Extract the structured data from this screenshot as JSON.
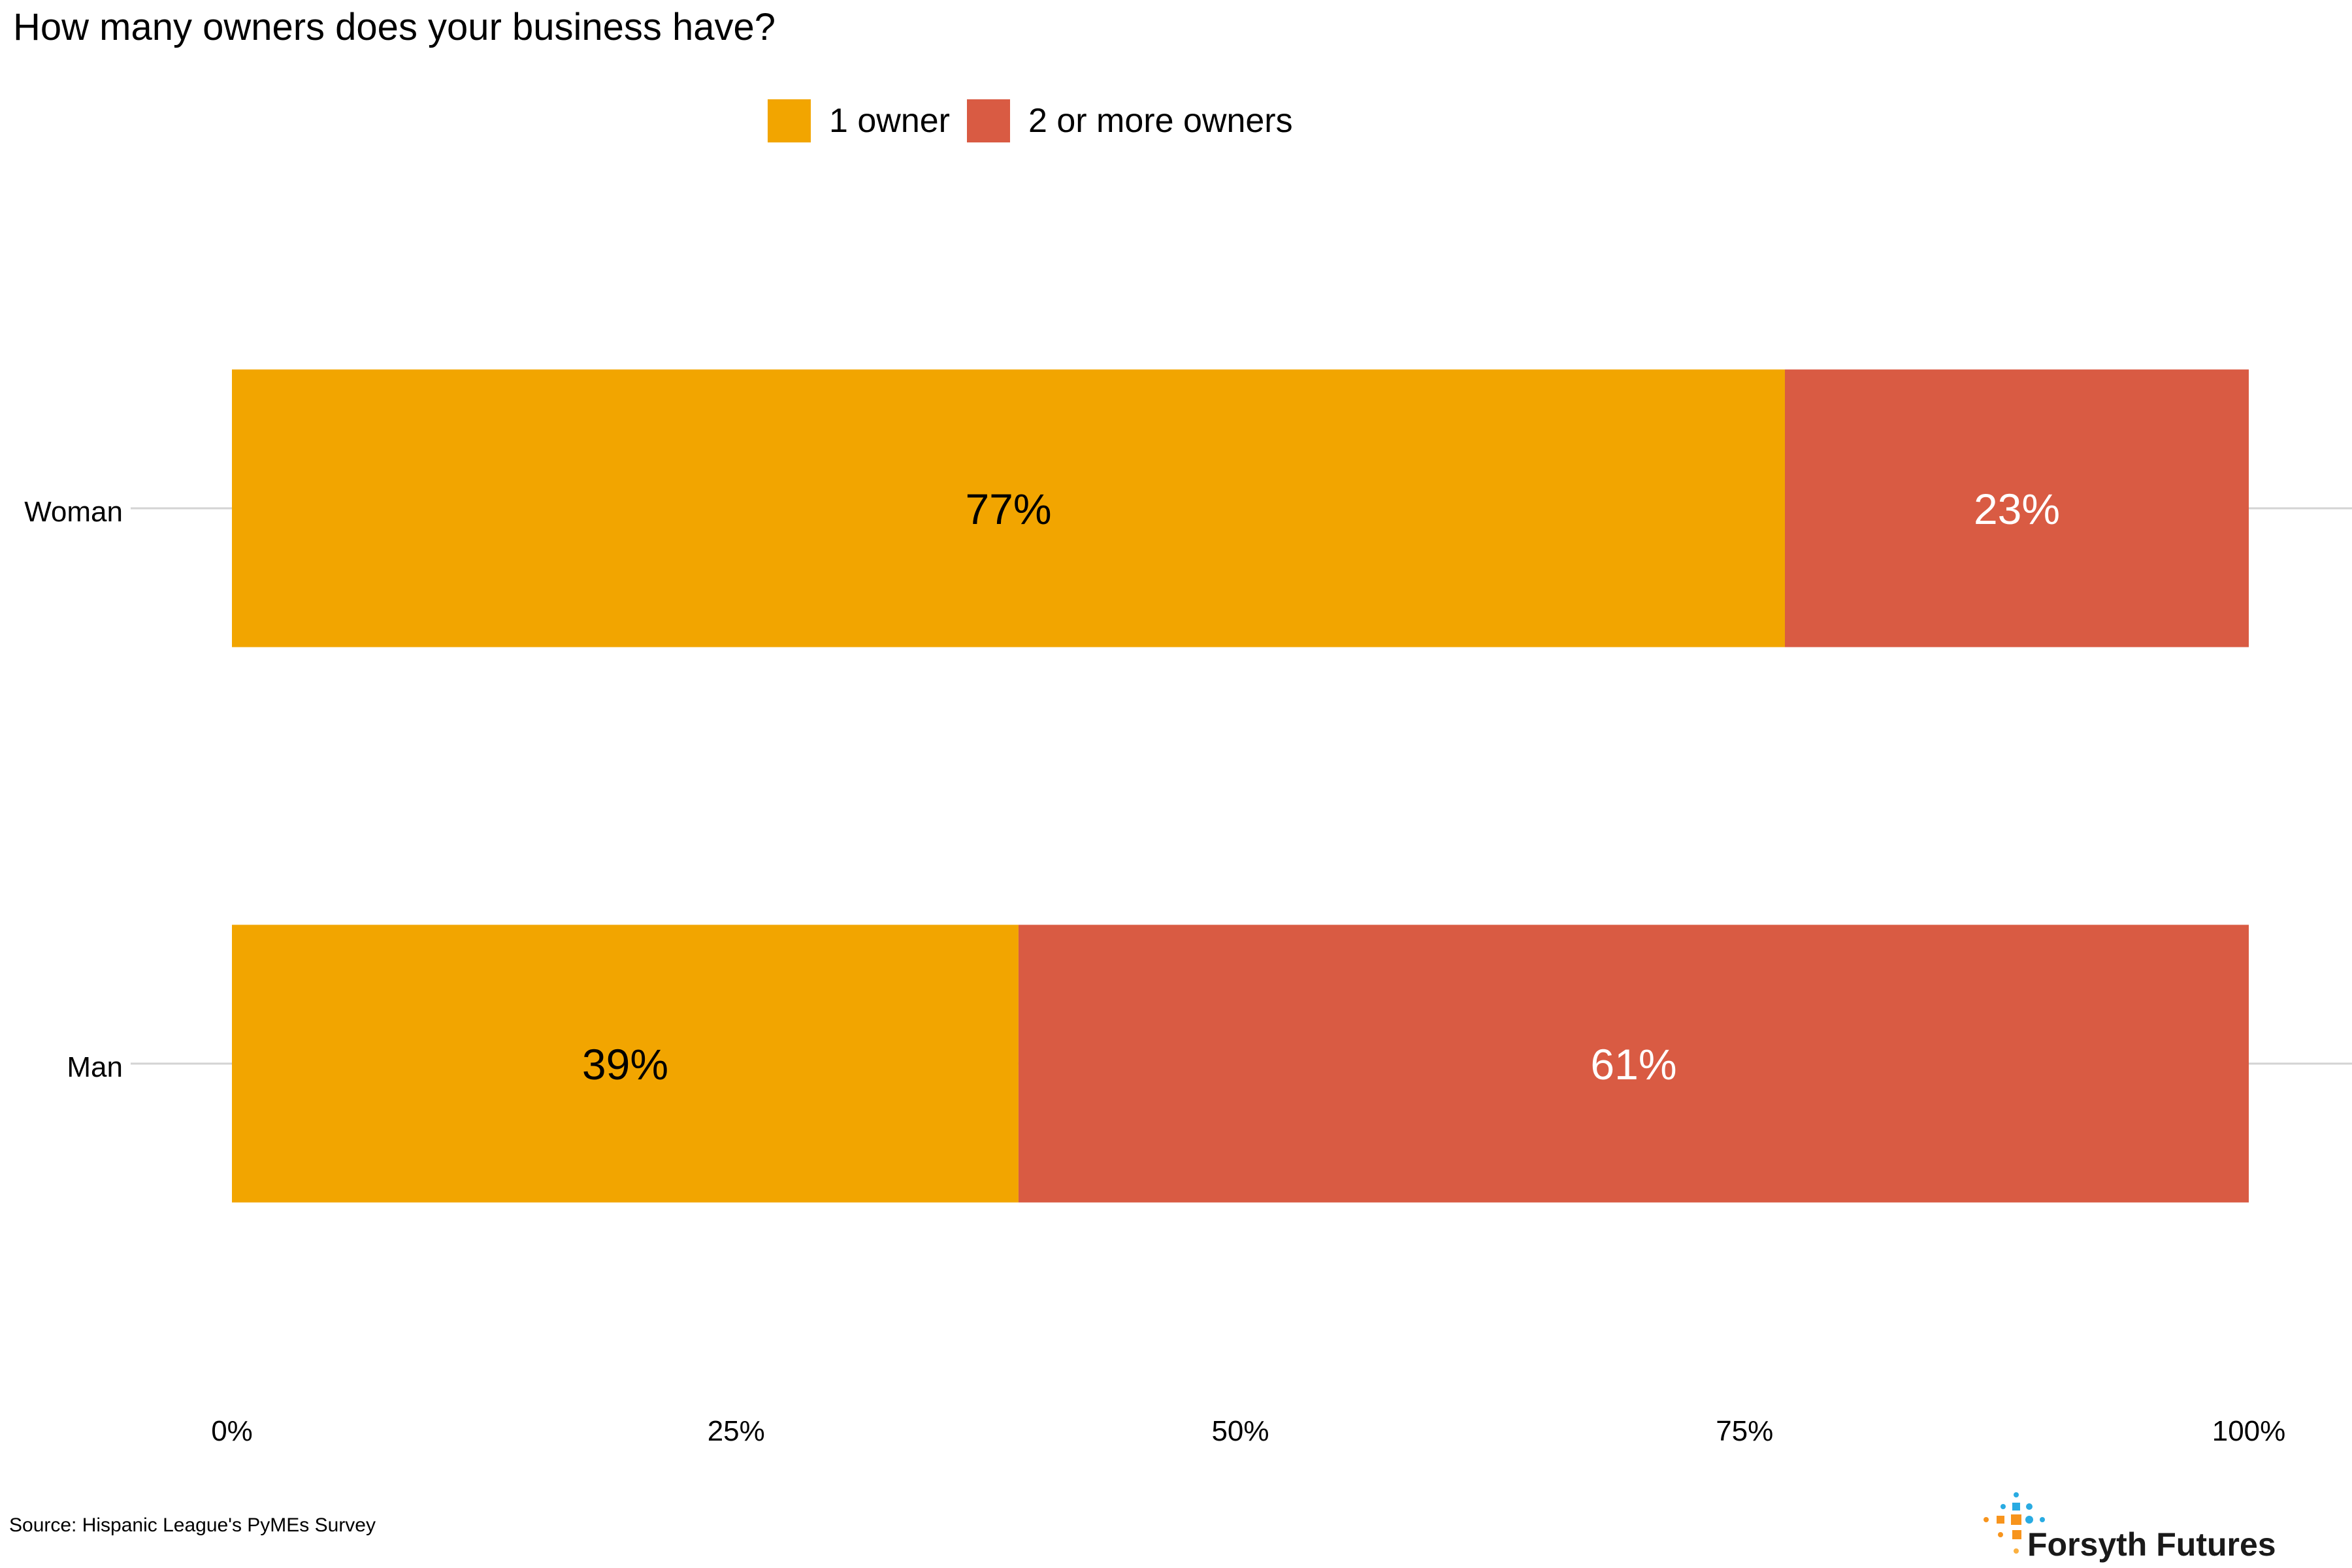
{
  "chart_data": {
    "type": "bar",
    "orientation": "horizontal",
    "stacked": true,
    "title": "How many owners does your business have?",
    "categories": [
      "Woman",
      "Man"
    ],
    "series": [
      {
        "name": "1 owner",
        "color": "#F2A500",
        "values": [
          77,
          39
        ],
        "labels": [
          "77%",
          "39%"
        ],
        "label_color": "#000000"
      },
      {
        "name": "2 or more owners",
        "color": "#D95B43",
        "values": [
          23,
          61
        ],
        "labels": [
          "23%",
          "61%"
        ],
        "label_color": "#ffffff"
      }
    ],
    "xlim": [
      0,
      100
    ],
    "xticks": [
      "0%",
      "25%",
      "50%",
      "75%",
      "100%"
    ],
    "xtick_values": [
      0,
      25,
      50,
      75,
      100
    ],
    "legend_position": "top",
    "grid": "horizontal"
  },
  "source": "Source: Hispanic League's PyMEs Survey",
  "logo": {
    "text": "Forsyth Futures"
  }
}
